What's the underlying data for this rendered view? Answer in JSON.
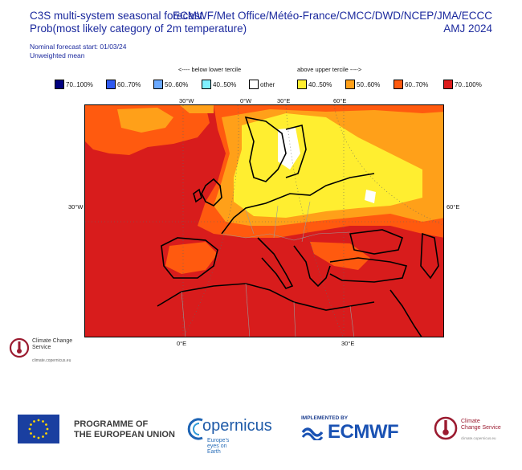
{
  "header": {
    "title_line1": "C3S multi-system seasonal forecast",
    "title_line2": "Prob(most likely category of 2m temperature)",
    "nominal_start": "Nominal forecast start: 01/03/24",
    "weighting": "Unweighted mean",
    "systems": "ECMWF/Met Office/Météo-France/CMCC/DWD/NCEP/JMA/ECCC",
    "season": "AMJ 2024"
  },
  "legend": {
    "below_label": "<---- below lower tercile",
    "above_label": "above upper tercile ---->",
    "items": [
      {
        "label": "70..100%",
        "color": "#00007f"
      },
      {
        "label": "60..70%",
        "color": "#2f5af0"
      },
      {
        "label": "50..60%",
        "color": "#6aa9ff"
      },
      {
        "label": "40..50%",
        "color": "#7ff0ff"
      },
      {
        "label": "other",
        "color": "#ffffff"
      },
      {
        "label": "40..50%",
        "color": "#ffee30"
      },
      {
        "label": "50..60%",
        "color": "#ffa019"
      },
      {
        "label": "60..70%",
        "color": "#ff5a0f"
      },
      {
        "label": "70..100%",
        "color": "#dd1c1c"
      }
    ]
  },
  "axes": {
    "top": [
      "30°W",
      "0°W",
      "30°E",
      "60°E"
    ],
    "left": "30°W",
    "right": "60°E",
    "bottom": [
      "0°E",
      "30°E"
    ]
  },
  "logos": {
    "ccs_name": "Climate Change Service",
    "ccs_url": "climate.copernicus.eu",
    "programme": "PROGRAMME OF THE EUROPEAN UNION",
    "programme_l1": "PROGRAMME OF",
    "programme_l2": "THE EUROPEAN UNION",
    "copernicus": "opernicus",
    "copernicus_tag": "Europe's eyes on Earth",
    "implemented_by": "IMPLEMENTED BY",
    "ecmwf": "ECMWF",
    "ccs_name_l1": "Climate",
    "ccs_name_l2": "Change Service",
    "ccs_url_small": "climate.copernicus.eu"
  },
  "colors": {
    "c70": "#dd1c1c",
    "c60": "#ff5a0f",
    "c50": "#ffa019",
    "c40": "#ffee30",
    "sea_bg": "#d41e1e"
  }
}
